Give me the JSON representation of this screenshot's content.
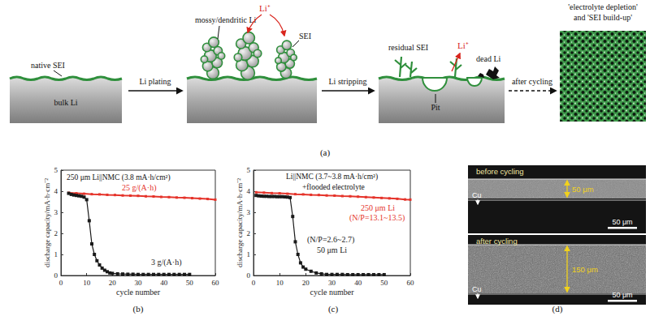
{
  "panel_labels": [
    "(a)",
    "(b)",
    "(c)",
    "(d)"
  ],
  "diagram": {
    "native_sei": "native SEI",
    "bulk_li": "bulk Li",
    "plating_arrow": "Li plating",
    "mossy": "mossy/dendritic Li",
    "li_ion": "Li⁺",
    "sei": "SEI",
    "stripping_arrow": "Li stripping",
    "residual_sei": "residual SEI",
    "dead_li": "dead Li",
    "pit": "Pit",
    "cycling_arrow": "after cycling",
    "result": [
      "'electrolyte depletion'",
      "and 'SEI build-up'"
    ]
  },
  "chart_data": [
    {
      "type": "line",
      "title": "250 μm Li||NMC (3.8 mA·h/cm²)",
      "x_label": "cycle number",
      "y_label": "discharge capacity/mA·h·cm⁻²",
      "xlim": [
        0,
        60
      ],
      "xticks": [
        0,
        10,
        20,
        30,
        40,
        50,
        60
      ],
      "ylim": [
        0,
        5
      ],
      "yticks": [
        0,
        1,
        2,
        3,
        4,
        5
      ],
      "grid": false,
      "series": [
        {
          "name": "25 g/(A·h)",
          "color": "#e5332a",
          "marker": "square",
          "x": [
            3,
            6,
            9,
            12,
            15,
            18,
            21,
            24,
            27,
            30,
            33,
            36,
            39,
            42,
            45,
            48,
            51,
            54,
            57,
            60
          ],
          "values": [
            3.92,
            3.9,
            3.88,
            3.86,
            3.85,
            3.83,
            3.82,
            3.8,
            3.79,
            3.78,
            3.76,
            3.75,
            3.73,
            3.72,
            3.7,
            3.69,
            3.67,
            3.65,
            3.63,
            3.6
          ]
        },
        {
          "name": "3 g/(A·h)",
          "color": "#1a1a1a",
          "marker": "square",
          "x": [
            3,
            4,
            5,
            6,
            7,
            8,
            9,
            10,
            11,
            12,
            13,
            14,
            15,
            16,
            17,
            18,
            19,
            20,
            22,
            24,
            26,
            28,
            30,
            32,
            34,
            36,
            38,
            40,
            42,
            44,
            46,
            48,
            50
          ],
          "values": [
            3.9,
            3.85,
            3.82,
            3.8,
            3.78,
            3.76,
            3.72,
            3.6,
            2.6,
            1.5,
            1.0,
            0.7,
            0.5,
            0.35,
            0.25,
            0.18,
            0.12,
            0.1,
            0.08,
            0.07,
            0.06,
            0.06,
            0.05,
            0.05,
            0.05,
            0.05,
            0.05,
            0.05,
            0.05,
            0.05,
            0.05,
            0.05,
            0.05
          ]
        }
      ]
    },
    {
      "type": "line",
      "title": "Li||NMC (3.7~3.8 mA·h/cm²)",
      "subtitle": "+flooded electrolyte",
      "x_label": "cycle number",
      "y_label": "discharge capacity/mA·h·cm⁻²",
      "xlim": [
        0,
        60
      ],
      "xticks": [
        0,
        10,
        20,
        30,
        40,
        50,
        60
      ],
      "ylim": [
        0,
        5
      ],
      "yticks": [
        0,
        1,
        2,
        3,
        4,
        5
      ],
      "grid": false,
      "series": [
        {
          "name": "250 μm Li",
          "annotation": "(N/P=13.1~13.5)",
          "color": "#e5332a",
          "marker": "square",
          "x": [
            1,
            4,
            7,
            10,
            13,
            16,
            19,
            22,
            25,
            28,
            31,
            34,
            37,
            40,
            43,
            46,
            49,
            52,
            55,
            58,
            60
          ],
          "values": [
            3.95,
            3.93,
            3.91,
            3.9,
            3.88,
            3.86,
            3.85,
            3.83,
            3.82,
            3.8,
            3.79,
            3.77,
            3.76,
            3.74,
            3.72,
            3.7,
            3.68,
            3.66,
            3.64,
            3.61,
            3.6
          ]
        },
        {
          "name": "50 μm Li",
          "annotation": "(N/P=2.6~2.7)",
          "color": "#1a1a1a",
          "marker": "square",
          "x": [
            1,
            2,
            3,
            4,
            5,
            6,
            7,
            8,
            9,
            10,
            11,
            12,
            13,
            14,
            15,
            16,
            17,
            18,
            19,
            20,
            22,
            24,
            26,
            28,
            30,
            32,
            34,
            36,
            38,
            40,
            42,
            44,
            46,
            48,
            50
          ],
          "values": [
            3.8,
            3.78,
            3.77,
            3.76,
            3.76,
            3.75,
            3.75,
            3.75,
            3.74,
            3.74,
            3.74,
            3.73,
            3.72,
            3.7,
            2.8,
            1.6,
            1.0,
            0.6,
            0.4,
            0.3,
            0.2,
            0.12,
            0.08,
            0.05,
            0.05,
            0.05,
            0.05,
            0.04,
            0.04,
            0.04,
            0.04,
            0.04,
            0.04,
            0.04,
            0.04
          ]
        }
      ]
    }
  ],
  "micrograph": {
    "panels": [
      {
        "title": "before cycling",
        "substrate": "Cu",
        "thickness": "50 μm",
        "scale_bar": "50 μm"
      },
      {
        "title": "after cycling",
        "substrate": "Cu",
        "thickness": "150 μm",
        "scale_bar": "50 μm"
      }
    ]
  }
}
